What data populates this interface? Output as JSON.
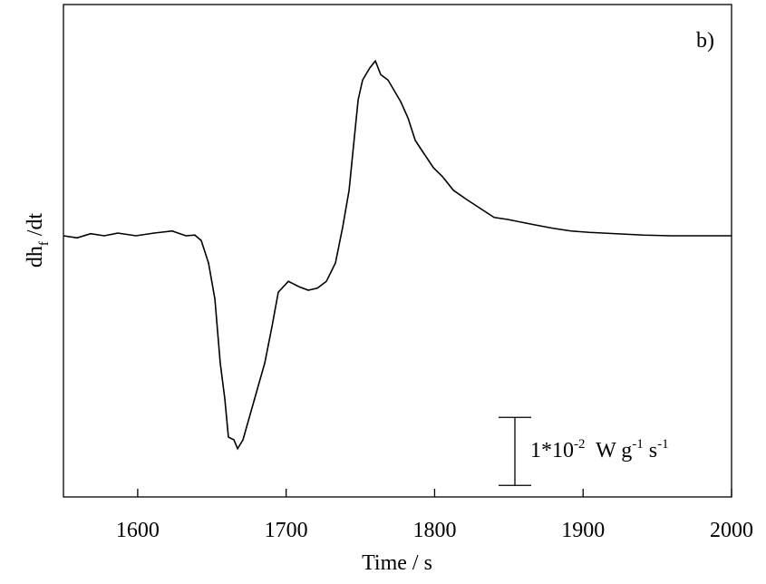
{
  "chart_data": {
    "type": "line",
    "panel_label": "b)",
    "x_label": "Time / s",
    "y_label_parts": [
      "dh",
      "f",
      " /dt"
    ],
    "scale_bar": {
      "value": 1,
      "label_parts": [
        "1*10",
        "-2",
        "  W g",
        "-1",
        " s",
        "-1"
      ]
    },
    "x": [
      1550,
      1559.2,
      1568.3,
      1577.5,
      1586.6,
      1598.9,
      1611.1,
      1623.3,
      1632.4,
      1638.5,
      1642.8,
      1647.7,
      1652.0,
      1655.6,
      1658.7,
      1661.1,
      1664.8,
      1667.3,
      1670.9,
      1675.2,
      1681.3,
      1685.6,
      1690.5,
      1694.7,
      1701.5,
      1708.8,
      1714.9,
      1721.0,
      1727.1,
      1733.2,
      1738.1,
      1742.4,
      1745.4,
      1748.5,
      1751.5,
      1756.4,
      1760.1,
      1763.7,
      1768.6,
      1772.9,
      1777.2,
      1782.1,
      1787.0,
      1793.1,
      1799.2,
      1805.3,
      1812.6,
      1821.8,
      1830.9,
      1840.1,
      1849.2,
      1858.4,
      1867.6,
      1879.8,
      1892.0,
      1904.2,
      1922.5,
      1940.8,
      1959.2,
      1977.5,
      2000
    ],
    "series": [
      {
        "color": "#000000",
        "values": [
          0,
          -0.03,
          0.03,
          0,
          0.04,
          0,
          0.04,
          0.07,
          0,
          0.01,
          -0.07,
          -0.4,
          -0.93,
          -1.87,
          -2.4,
          -2.96,
          -3.0,
          -3.13,
          -3.0,
          -2.67,
          -2.2,
          -1.87,
          -1.33,
          -0.83,
          -0.67,
          -0.75,
          -0.8,
          -0.77,
          -0.67,
          -0.4,
          0.13,
          0.67,
          1.33,
          2.0,
          2.29,
          2.47,
          2.57,
          2.37,
          2.29,
          2.13,
          1.97,
          1.73,
          1.4,
          1.2,
          1.0,
          0.87,
          0.67,
          0.53,
          0.4,
          0.27,
          0.24,
          0.2,
          0.16,
          0.11,
          0.07,
          0.05,
          0.03,
          0.01,
          0,
          0,
          0
        ]
      }
    ],
    "xlim": [
      1550,
      2000
    ],
    "ylim": [
      -3.84,
      3.4
    ],
    "xticks": [
      1600,
      1700,
      1800,
      1900,
      2000
    ]
  }
}
